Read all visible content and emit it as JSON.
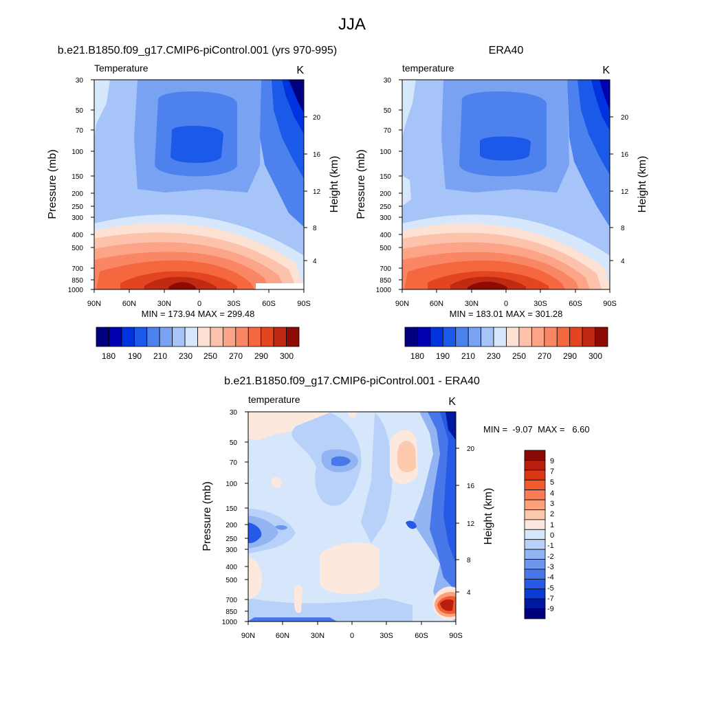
{
  "figure": {
    "title": "JJA"
  },
  "palettes": {
    "abs": [
      "#02007f",
      "#0000b0",
      "#0033dd",
      "#1b5ae8",
      "#4d82ee",
      "#7aa2f3",
      "#a7c4f8",
      "#d7e7fb",
      "#fde1d2",
      "#fcc2ab",
      "#fba488",
      "#f98665",
      "#f5673e",
      "#e34521",
      "#c12a12",
      "#8e0a04"
    ],
    "diff": [
      "#8a0a06",
      "#b81e0d",
      "#dc3714",
      "#f25b2e",
      "#f87d55",
      "#fba27d",
      "#fdc9ac",
      "#fde8dd",
      "#d6e6fb",
      "#b8d1f8",
      "#93b4f3",
      "#6e96ee",
      "#4877e9",
      "#2659e5",
      "#0b3bd6",
      "#001a9f",
      "#00007c"
    ]
  },
  "chart_data": [
    {
      "type": "heatmap",
      "title": "b.e21.B1850.f09_g17.CMIP6-piControl.001 (yrs 970-995)",
      "left_label": "Temperature",
      "right_label": "K",
      "ylabel": "Pressure (mb)",
      "y2label": "Height (km)",
      "x_ticks": [
        "90N",
        "60N",
        "30N",
        "0",
        "30S",
        "60S",
        "90S"
      ],
      "y_ticks": [
        "30",
        "50",
        "70",
        "100",
        "150",
        "200",
        "250",
        "300",
        "400",
        "500",
        "700",
        "850",
        "1000"
      ],
      "y2_ticks": [
        "4",
        "8",
        "12",
        "16",
        "20"
      ],
      "stats": "MIN = 173.94  MAX = 299.48",
      "colorbar_labels": [
        "180",
        "190",
        "210",
        "230",
        "250",
        "270",
        "290",
        "300"
      ]
    },
    {
      "type": "heatmap",
      "title": "ERA40",
      "left_label": "temperature",
      "right_label": "K",
      "ylabel": "Pressure (mb)",
      "y2label": "Height (km)",
      "x_ticks": [
        "90N",
        "60N",
        "30N",
        "0",
        "30S",
        "60S",
        "90S"
      ],
      "y_ticks": [
        "30",
        "50",
        "70",
        "100",
        "150",
        "200",
        "250",
        "300",
        "400",
        "500",
        "700",
        "850",
        "1000"
      ],
      "y2_ticks": [
        "4",
        "8",
        "12",
        "16",
        "20"
      ],
      "stats": "MIN = 183.01  MAX = 301.28",
      "colorbar_labels": [
        "180",
        "190",
        "210",
        "230",
        "250",
        "270",
        "290",
        "300"
      ]
    },
    {
      "type": "heatmap",
      "title": "b.e21.B1850.f09_g17.CMIP6-piControl.001 - ERA40",
      "left_label": "temperature",
      "right_label": "K",
      "ylabel": "Pressure (mb)",
      "y2label": "Height (km)",
      "x_ticks": [
        "90N",
        "60N",
        "30N",
        "0",
        "30S",
        "60S",
        "90S"
      ],
      "y_ticks": [
        "30",
        "50",
        "70",
        "100",
        "150",
        "200",
        "250",
        "300",
        "400",
        "500",
        "700",
        "850",
        "1000"
      ],
      "y2_ticks": [
        "4",
        "8",
        "12",
        "16",
        "20"
      ],
      "stats": "MIN =  -9.07  MAX =   6.60",
      "colorbar_labels": [
        "9",
        "7",
        "5",
        "4",
        "3",
        "2",
        "1",
        "0",
        "-1",
        "-2",
        "-3",
        "-4",
        "-5",
        "-7",
        "-9"
      ]
    }
  ]
}
